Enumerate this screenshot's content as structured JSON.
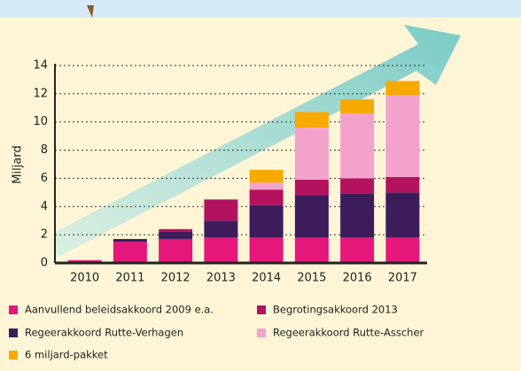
{
  "chart_data": {
    "type": "bar",
    "stacked": true,
    "ylabel": "Miljard",
    "categories": [
      "2010",
      "2011",
      "2012",
      "2013",
      "2014",
      "2015",
      "2016",
      "2017"
    ],
    "series": [
      {
        "name": "Aanvullend beleidsakkoord 2009 e.a.",
        "color": "#e5177b",
        "values": [
          0.2,
          1.5,
          1.7,
          1.8,
          1.8,
          1.8,
          1.8,
          1.8
        ]
      },
      {
        "name": "Regeerakkoord Rutte-Verhagen",
        "color": "#3d1c5c",
        "values": [
          0,
          0.2,
          0.5,
          1.2,
          2.3,
          3.0,
          3.1,
          3.2
        ]
      },
      {
        "name": "Begrotingsakkoord 2013",
        "color": "#b3125f",
        "values": [
          0,
          0,
          0.2,
          1.5,
          1.1,
          1.1,
          1.1,
          1.1
        ]
      },
      {
        "name": "Regeerakkoord Rutte-Asscher",
        "color": "#f3a3cb",
        "values": [
          0,
          0,
          0,
          0,
          0.5,
          3.7,
          4.6,
          5.8
        ]
      },
      {
        "name": "6 miljard-pakket",
        "color": "#f7a900",
        "values": [
          0,
          0,
          0,
          0,
          0.9,
          1.1,
          1.0,
          1.0
        ]
      }
    ],
    "ylim": [
      0,
      14
    ],
    "yticks": [
      0,
      2,
      4,
      6,
      8,
      10,
      12,
      14
    ],
    "grid": true
  }
}
